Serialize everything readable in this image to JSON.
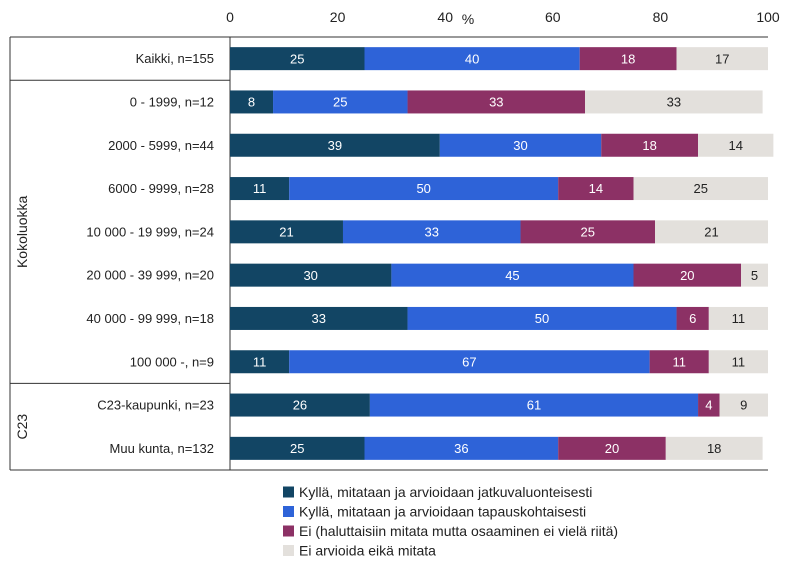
{
  "chart_data": {
    "type": "bar",
    "orientation": "horizontal",
    "stacked": true,
    "axis_label": "%",
    "xlim": [
      0,
      100
    ],
    "x_ticks": [
      "0",
      "20",
      "40",
      "60",
      "80",
      "100"
    ],
    "categories": [
      "Kaikki, n=155",
      "0 - 1999, n=12",
      "2000 - 5999, n=44",
      "6000 - 9999, n=28",
      "10 000 - 19 999, n=24",
      "20 000 - 39 999, n=20",
      "40 000 - 99 999, n=18",
      "100 000 -, n=9",
      "C23-kaupunki, n=23",
      "Muu kunta, n=132"
    ],
    "groups": [
      {
        "label": "Kokoluokka",
        "start": 1,
        "end": 7
      },
      {
        "label": "C23",
        "start": 8,
        "end": 9
      }
    ],
    "series": [
      {
        "name": "Kyllä, mitataan ja arvioidaan jatkuvaluonteisesti",
        "color": "#124564",
        "label_color": "#ffffff",
        "values": [
          25,
          8,
          39,
          11,
          21,
          30,
          33,
          11,
          26,
          25
        ]
      },
      {
        "name": "Kyllä, mitataan ja arvioidaan tapauskohtaisesti",
        "color": "#2e63d8",
        "label_color": "#ffffff",
        "values": [
          40,
          25,
          30,
          50,
          33,
          45,
          50,
          67,
          61,
          36
        ]
      },
      {
        "name": "Ei (haluttaisiin mitata mutta osaaminen ei vielä riitä)",
        "color": "#8c3165",
        "label_color": "#ffffff",
        "values": [
          18,
          33,
          18,
          14,
          25,
          20,
          6,
          11,
          4,
          20
        ]
      },
      {
        "name": "Ei arvioida eikä mitata",
        "color": "#e3e0dc",
        "label_color": "#222222",
        "values": [
          17,
          33,
          14,
          25,
          21,
          5,
          11,
          11,
          9,
          18
        ]
      }
    ],
    "legend_position": "bottom"
  }
}
